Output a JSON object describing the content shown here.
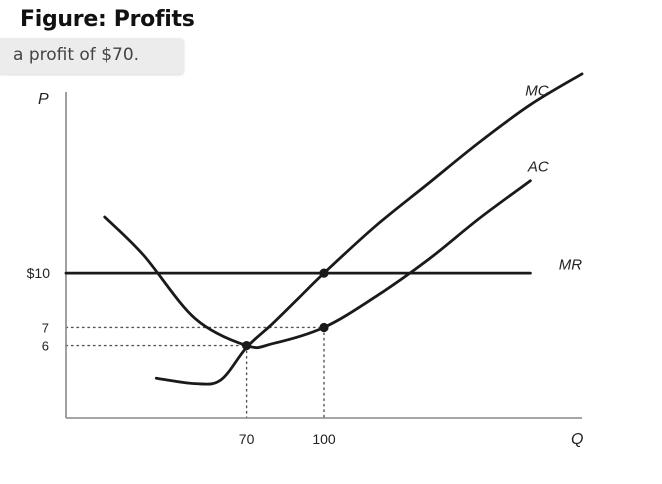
{
  "figure": {
    "title": "Figure: Profits"
  },
  "answer": {
    "text": "a profit of $70."
  },
  "colors": {
    "curve": "#1a1a1a",
    "axis": "#888888",
    "guide": "#555555",
    "background": "#ffffff"
  },
  "chart_data": {
    "type": "line",
    "title": "",
    "xlabel": "Q",
    "ylabel": "P",
    "xlim": [
      0,
      200
    ],
    "ylim": [
      2,
      20
    ],
    "x_ticks": [
      {
        "value": 70,
        "label": "70"
      },
      {
        "value": 100,
        "label": "100"
      }
    ],
    "y_ticks": [
      {
        "value": 10,
        "label": "$10"
      },
      {
        "value": 7,
        "label": "7"
      },
      {
        "value": 6,
        "label": "6"
      }
    ],
    "series": [
      {
        "name": "MC",
        "x": [
          35,
          50,
          60,
          70,
          80,
          90,
          100,
          120,
          140,
          160,
          180,
          200
        ],
        "y": [
          4.2,
          3.9,
          4.1,
          5.9,
          7.2,
          8.6,
          10,
          12.6,
          14.9,
          17.2,
          19.3,
          21
        ]
      },
      {
        "name": "AC",
        "x": [
          15,
          30,
          50,
          70,
          80,
          100,
          120,
          140,
          160,
          180
        ],
        "y": [
          13.1,
          11,
          7.5,
          6,
          6.1,
          7,
          8.7,
          10.7,
          13,
          15.1
        ]
      },
      {
        "name": "MR",
        "x": [
          0,
          180
        ],
        "y": [
          10,
          10
        ]
      }
    ],
    "points": [
      {
        "x": 70,
        "y": 6
      },
      {
        "x": 100,
        "y": 10
      },
      {
        "x": 100,
        "y": 7
      }
    ],
    "guides": [
      {
        "x": 70,
        "y": 6
      },
      {
        "x": 100,
        "y": 7
      }
    ],
    "curve_labels": [
      {
        "text": "MC",
        "x": 178,
        "y": 19.8
      },
      {
        "text": "AC",
        "x": 179,
        "y": 15.6
      },
      {
        "text": "MR",
        "x": 191,
        "y": 10.2
      }
    ],
    "grid": false,
    "legend": "none"
  }
}
